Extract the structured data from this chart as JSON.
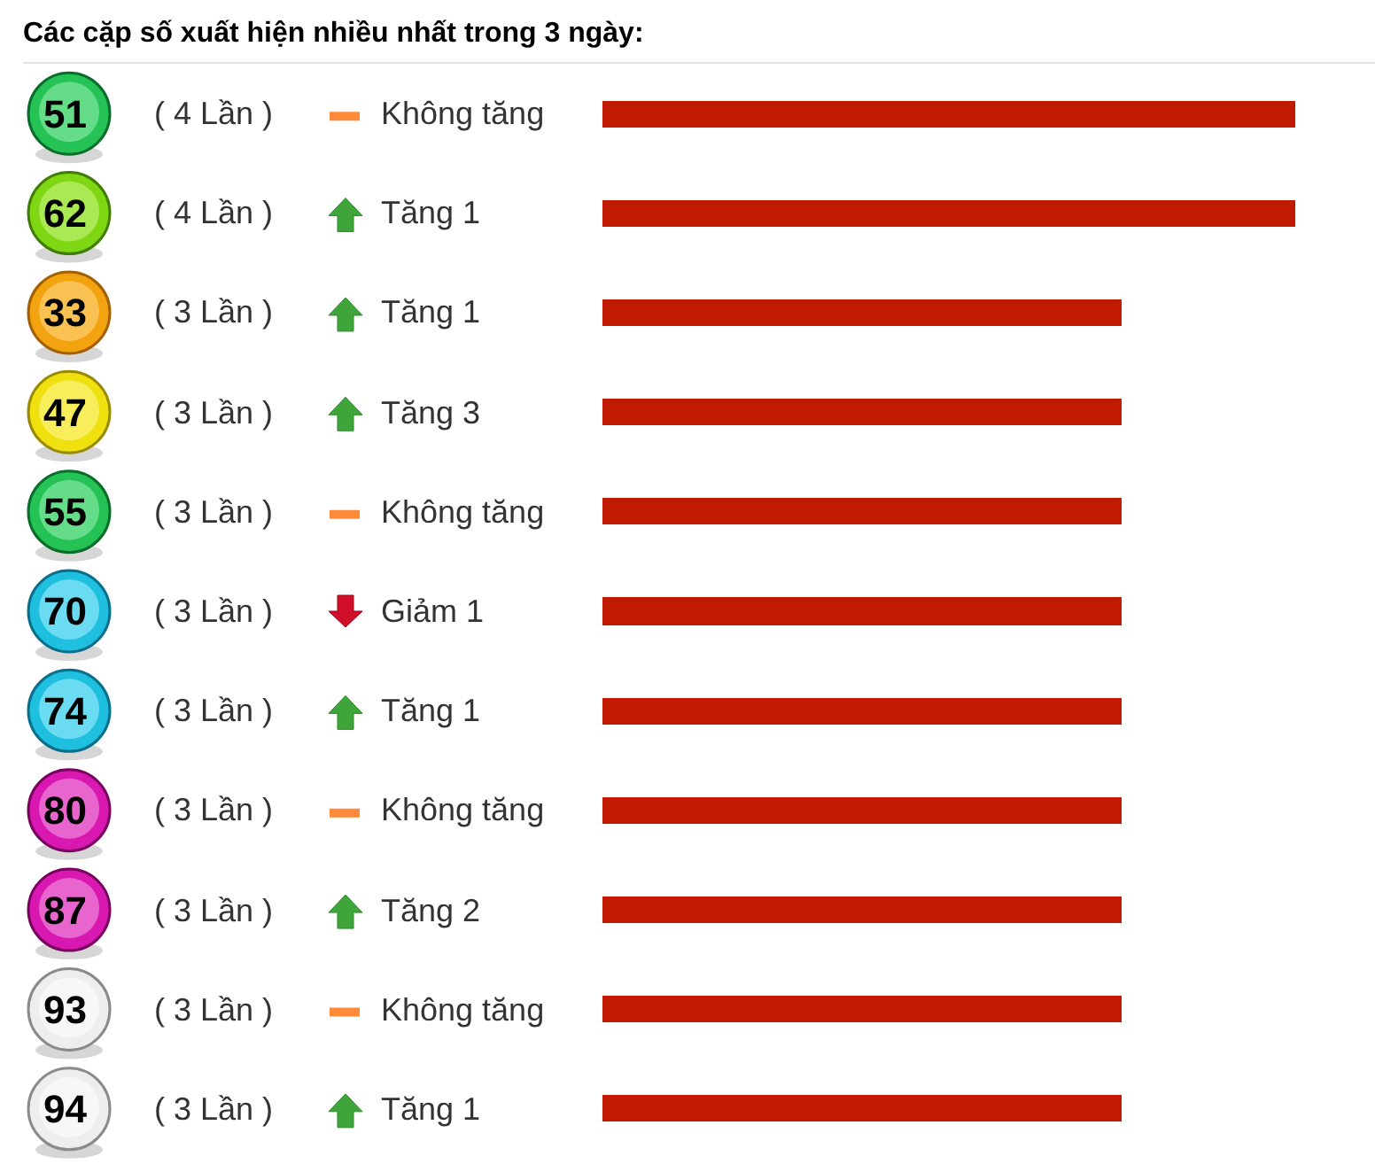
{
  "chart_data": {
    "type": "bar",
    "orientation": "horizontal",
    "title": "Các cặp số xuất hiện nhiều nhất trong 3 ngày:",
    "categories": [
      "51",
      "62",
      "33",
      "47",
      "55",
      "70",
      "74",
      "80",
      "87",
      "93",
      "94"
    ],
    "values": [
      4,
      4,
      3,
      3,
      3,
      3,
      3,
      3,
      3,
      3,
      3
    ],
    "value_labels": [
      "( 4 Lần )",
      "( 4 Lần )",
      "( 3 Lần )",
      "( 3 Lần )",
      "( 3 Lần )",
      "( 3 Lần )",
      "( 3 Lần )",
      "( 3 Lần )",
      "( 3 Lần )",
      "( 3 Lần )",
      "( 3 Lần )"
    ],
    "color": "#c21a00",
    "tick_labels": "y",
    "annotations": [
      "Không tăng",
      "Tăng 1",
      "Tăng 1",
      "Tăng 3",
      "Không tăng",
      "Giảm 1",
      "Tăng 1",
      "Không tăng",
      "Tăng 2",
      "Không tăng",
      "Tăng 1"
    ]
  }
}
